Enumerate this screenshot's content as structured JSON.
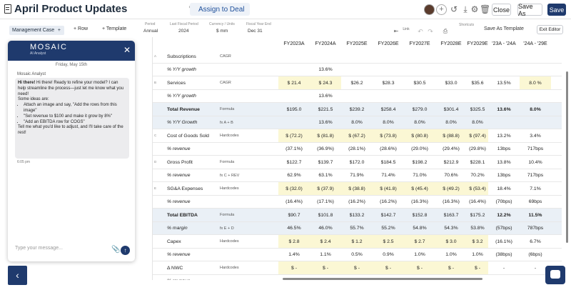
{
  "app": {
    "title": "April Product Updates",
    "assign_label": "Assign to Deal"
  },
  "header_buttons": {
    "close": "Close",
    "save_as": "Save As",
    "save": "Save"
  },
  "toolbar": {
    "tab": "Management Case",
    "tab_add": "+",
    "row": "+ Row",
    "template": "+ Template",
    "save_template": "Save As Template",
    "exit_editor": "Exit Editor",
    "shortcuts": "Shortcuts"
  },
  "meta": [
    {
      "label": "Period",
      "value": "Annual"
    },
    {
      "label": "Last Fiscal Period",
      "value": "2024"
    },
    {
      "label": "Currency / Units",
      "value": "$     mm"
    },
    {
      "label": "Fiscal Year End",
      "value": "Dec   31"
    }
  ],
  "chat": {
    "logo": "MOSAIC",
    "logo_sub": "AI Analyst",
    "date": "Friday, May 15th",
    "sender": "Mosaic Analyst",
    "msg_intro": "Hi there! Ready to refine your model? I can help streamline the process—just let me know what you need!",
    "msg_ideas": "Some ideas are:",
    "ideas": [
      "Attach an image and say, \"Add the rows from this image\"",
      "\"Set revenue to $100 and make it grow by 8%\"",
      "\"Add an EBITDA row for COGS\""
    ],
    "msg_outro": "Tell me what you'd like to adjust, and I'll take care of the rest!",
    "time": "6:05 pm",
    "input_placeholder": "Type your message..."
  },
  "columns": [
    "FY2023A",
    "FY2024A",
    "FY2025E",
    "FY2026E",
    "FY2027E",
    "FY2028E",
    "FY2029E",
    "'23A - '24A",
    "'24A - '29E"
  ],
  "rows": [
    {
      "group": "A",
      "label": "Subscriptions",
      "method": "CAGR",
      "values": [
        "",
        "",
        "",
        "",
        "",
        "",
        "",
        "",
        ""
      ],
      "style": "line"
    },
    {
      "group": "",
      "label": "% Y/Y growth",
      "method": "",
      "values": [
        "",
        "13.6%",
        "",
        "",
        "",
        "",
        "",
        "",
        ""
      ],
      "style": "sub"
    },
    {
      "group": "B",
      "label": "Services",
      "method": "CAGR",
      "values": [
        "$ 21.4",
        "$ 24.3",
        "$26.2",
        "$28.3",
        "$30.5",
        "$33.0",
        "$35.6",
        "13.5%",
        "8.0 %"
      ],
      "style": "line"
    },
    {
      "group": "",
      "label": "% Y/Y growth",
      "method": "",
      "values": [
        "",
        "13.6%",
        "",
        "",
        "",
        "",
        "",
        "",
        ""
      ],
      "style": "sub"
    },
    {
      "group": "",
      "label": "Total Revenue",
      "method": "Formula",
      "values": [
        "$195.0",
        "$221.5",
        "$239.2",
        "$258.4",
        "$279.0",
        "$301.4",
        "$325.5",
        "13.6%",
        "8.0%"
      ],
      "style": "total"
    },
    {
      "group": "",
      "label": "% Y/Y Growth",
      "method": "fx  A + B",
      "values": [
        "",
        "13.6%",
        "8.0%",
        "8.0%",
        "8.0%",
        "8.0%",
        "8.0%",
        "",
        ""
      ],
      "style": "totalsub"
    },
    {
      "group": "C",
      "label": "Cost of Goods Sold",
      "method": "Hardcodes",
      "values": [
        "$ (72.2)",
        "$ (81.8)",
        "$ (67.2)",
        "$ (73.8)",
        "$ (80.8)",
        "$ (88.8)",
        "$ (97.4)",
        "13.2%",
        "3.4%"
      ],
      "style": "line"
    },
    {
      "group": "",
      "label": "% revenue",
      "method": "",
      "values": [
        "(37.1%)",
        "(36.9%)",
        "(28.1%)",
        "(28.6%)",
        "(29.0%)",
        "(29.4%)",
        "(29.8%)",
        "13bps",
        "717bps"
      ],
      "style": "sub"
    },
    {
      "group": "D",
      "label": "Gross Profit",
      "method": "Formula",
      "values": [
        "$122.7",
        "$139.7",
        "$172.0",
        "$184.5",
        "$198.2",
        "$212.9",
        "$228.1",
        "13.8%",
        "10.4%"
      ],
      "style": "line"
    },
    {
      "group": "",
      "label": "% revenue",
      "method": "fx  C + REV",
      "values": [
        "62.9%",
        "63.1%",
        "71.9%",
        "71.4%",
        "71.0%",
        "70.6%",
        "70.2%",
        "13bps",
        "717bps"
      ],
      "style": "sub"
    },
    {
      "group": "E",
      "label": "SG&A Expenses",
      "method": "Hardcodes",
      "values": [
        "$ (32.0)",
        "$ (37.9)",
        "$ (38.8)",
        "$ (41.8)",
        "$ (45.4)",
        "$ (49.2)",
        "$ (53.4)",
        "18.4%",
        "7.1%"
      ],
      "style": "line"
    },
    {
      "group": "",
      "label": "% revenue",
      "method": "",
      "values": [
        "(16.4%)",
        "(17.1%)",
        "(16.2%)",
        "(16.2%)",
        "(16.3%)",
        "(16.3%)",
        "(16.4%)",
        "(70bps)",
        "69bps"
      ],
      "style": "sub"
    },
    {
      "group": "",
      "label": "Total EBITDA",
      "method": "Formula",
      "values": [
        "$90.7",
        "$101.8",
        "$133.2",
        "$142.7",
        "$152.8",
        "$163.7",
        "$175.2",
        "12.2%",
        "11.5%"
      ],
      "style": "total"
    },
    {
      "group": "",
      "label": "% margin",
      "method": "fx  E + D",
      "values": [
        "46.5%",
        "46.0%",
        "55.7%",
        "55.2%",
        "54.8%",
        "54.3%",
        "53.8%",
        "(57bps)",
        "787bps"
      ],
      "style": "totalsub"
    },
    {
      "group": "",
      "label": "Capex",
      "method": "Hardcodes",
      "values": [
        "$ 2.8",
        "$ 2.4",
        "$ 1.2",
        "$ 2.5",
        "$ 2.7",
        "$ 3.0",
        "$ 3.2",
        "(16.1%)",
        "6.7%"
      ],
      "style": "line"
    },
    {
      "group": "",
      "label": "% revenue",
      "method": "",
      "values": [
        "1.4%",
        "1.1%",
        "0.5%",
        "0.9%",
        "1.0%",
        "1.0%",
        "1.0%",
        "(38bps)",
        "(6bps)"
      ],
      "style": "sub"
    },
    {
      "group": "",
      "label": "Δ NWC",
      "method": "Hardcodes",
      "values": [
        "$ -",
        "$ -",
        "$ -",
        "$ -",
        "$ -",
        "$ -",
        "$ -",
        "-",
        "-"
      ],
      "style": "line"
    },
    {
      "group": "",
      "label": "% revenue",
      "method": "",
      "values": [
        "-",
        "-",
        "-",
        "-",
        "-",
        "-",
        "-",
        "-",
        "-"
      ],
      "style": "sub"
    }
  ],
  "link_label": "Link Label",
  "colors": {
    "navy": "#1f3a6d",
    "yellow": "#fbf7d4",
    "total_bg": "#eaf0f6",
    "sub_bg": "#f3f6fa"
  }
}
